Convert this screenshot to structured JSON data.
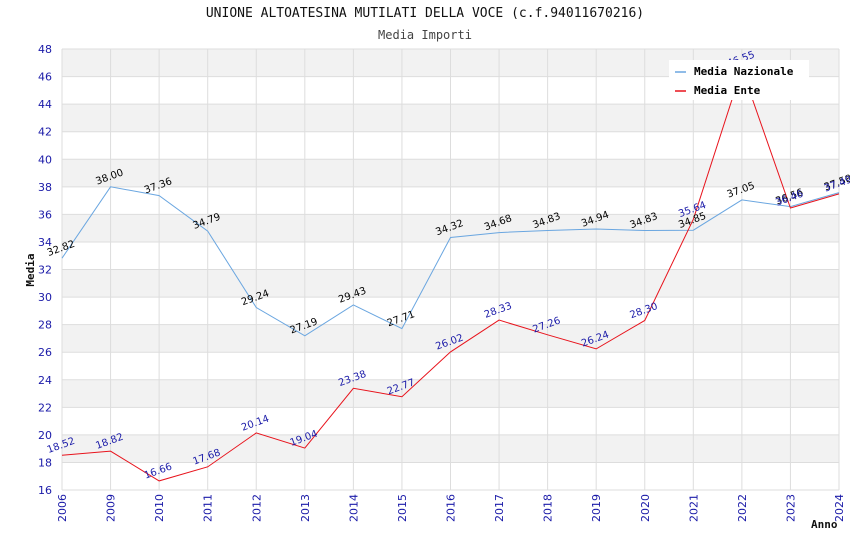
{
  "chart_data": {
    "type": "line",
    "title": "UNIONE ALTOATESINA MUTILATI DELLA VOCE (c.f.94011670216)",
    "subtitle": "Media Importi",
    "xlabel": "Anno",
    "ylabel": "Media",
    "ylim": [
      16,
      48
    ],
    "yticks": [
      16,
      18,
      20,
      22,
      24,
      26,
      28,
      30,
      32,
      34,
      36,
      38,
      40,
      42,
      44,
      46,
      48
    ],
    "categories": [
      "2006",
      "2009",
      "2010",
      "2011",
      "2012",
      "2013",
      "2014",
      "2015",
      "2016",
      "2017",
      "2018",
      "2019",
      "2020",
      "2021",
      "2022",
      "2023",
      "2024"
    ],
    "grid": "horizontal",
    "legend_position": "top-right",
    "series": [
      {
        "name": "Media Nazionale",
        "color": "#6aa6e0",
        "values": [
          32.82,
          38.0,
          37.36,
          34.79,
          29.24,
          27.19,
          29.43,
          27.71,
          34.32,
          34.68,
          34.83,
          34.94,
          34.83,
          34.85,
          37.05,
          36.56,
          37.58
        ],
        "labels": [
          "32.82",
          "38.00",
          "37.36",
          "34.79",
          "29.24",
          "27.19",
          "29.43",
          "27.71",
          "34.32",
          "34.68",
          "34.83",
          "34.94",
          "34.83",
          "34.85",
          "37.05",
          "36.56",
          "37.58"
        ]
      },
      {
        "name": "Media Ente",
        "color": "#e8131c",
        "values": [
          18.52,
          18.82,
          16.66,
          17.68,
          20.14,
          19.04,
          23.38,
          22.77,
          26.02,
          28.33,
          27.26,
          26.24,
          28.3,
          35.64,
          46.55,
          36.46,
          37.49
        ],
        "labels": [
          "18.52",
          "18.82",
          "16.66",
          "17.68",
          "20.14",
          "19.04",
          "23.38",
          "22.77",
          "26.02",
          "28.33",
          "27.26",
          "26.24",
          "28.30",
          "35.64",
          "46.55",
          "36.46",
          "37.49"
        ]
      }
    ]
  }
}
